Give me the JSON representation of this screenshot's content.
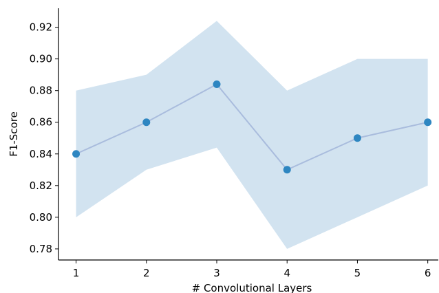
{
  "chart_data": {
    "type": "line",
    "xlabel": "# Convolutional Layers",
    "ylabel": "F1-Score",
    "x": [
      1,
      2,
      3,
      4,
      5,
      6
    ],
    "xticks": [
      "1",
      "2",
      "3",
      "4",
      "5",
      "6"
    ],
    "yticks": [
      "0.78",
      "0.80",
      "0.82",
      "0.84",
      "0.86",
      "0.88",
      "0.90",
      "0.92"
    ],
    "ylim": [
      0.773,
      0.932
    ],
    "xlim": [
      0.75,
      6.15
    ],
    "series": [
      {
        "values": [
          0.84,
          0.86,
          0.884,
          0.83,
          0.85,
          0.86
        ],
        "lower": [
          0.8,
          0.83,
          0.844,
          0.78,
          0.8,
          0.82
        ],
        "upper": [
          0.88,
          0.89,
          0.924,
          0.88,
          0.9,
          0.9
        ]
      }
    ],
    "grid": false,
    "legend": "none",
    "colors": {
      "band": "#d2e3f0",
      "line": "#a9bcdd",
      "marker": "#2e86c1",
      "axis": "#000000"
    }
  }
}
